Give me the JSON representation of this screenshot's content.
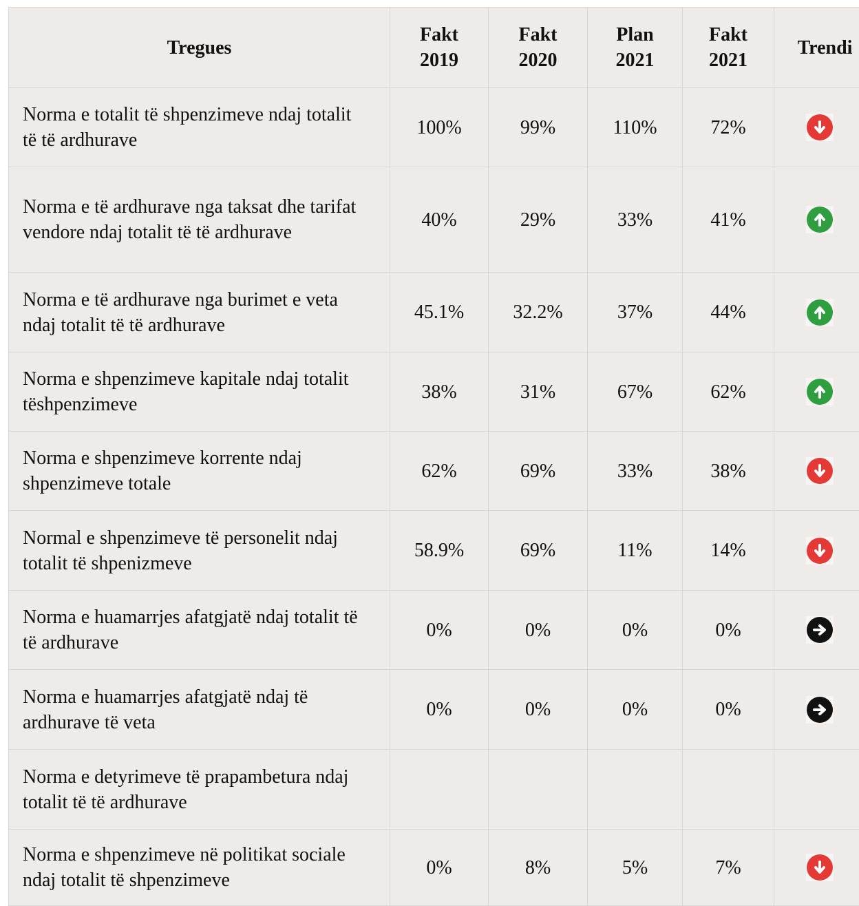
{
  "table": {
    "header": [
      "Tregues",
      "Fakt 2019",
      "Fakt 2020",
      "Plan 2021",
      "Fakt 2021",
      "Trendi"
    ],
    "rows": [
      {
        "label": "Norma e totalit të shpenzimeve ndaj totalit të të ardhurave",
        "values": [
          "100%",
          "99%",
          "110%",
          "72%"
        ],
        "trend": "down"
      },
      {
        "label": "Norma e të ardhurave nga taksat dhe tarifat vendore ndaj totalit të të ardhurave",
        "values": [
          "40%",
          "29%",
          "33%",
          "41%"
        ],
        "trend": "up"
      },
      {
        "label": "Norma e të ardhurave nga burimet e veta ndaj totalit të të ardhurave",
        "values": [
          "45.1%",
          "32.2%",
          "37%",
          "44%"
        ],
        "trend": "up"
      },
      {
        "label": "Norma e shpenzimeve kapitale ndaj totalit tëshpenzimeve",
        "values": [
          "38%",
          "31%",
          "67%",
          "62%"
        ],
        "trend": "up"
      },
      {
        "label": "Norma e shpenzimeve korrente ndaj shpenzimeve totale",
        "values": [
          "62%",
          "69%",
          "33%",
          "38%"
        ],
        "trend": "down"
      },
      {
        "label": "Normal e shpenzimeve të personelit ndaj totalit të shpenizmeve",
        "values": [
          "58.9%",
          "69%",
          "11%",
          "14%"
        ],
        "trend": "down"
      },
      {
        "label": "Norma e huamarrjes afatgjatë ndaj totalit të të ardhurave",
        "values": [
          "0%",
          "0%",
          "0%",
          "0%"
        ],
        "trend": "flat"
      },
      {
        "label": "Norma e huamarrjes afatgjatë ndaj të ardhurave të veta",
        "values": [
          "0%",
          "0%",
          "0%",
          "0%"
        ],
        "trend": "flat"
      },
      {
        "label": "Norma e detyrimeve të prapambetura ndaj totalit të të ardhurave",
        "values": [
          null,
          null,
          null,
          null
        ],
        "trend": null
      },
      {
        "label": "Norma e shpenzimeve në politikat sociale ndaj totalit të shpenzimeve",
        "values": [
          "0%",
          "8%",
          "5%",
          "7%"
        ],
        "trend": "down"
      }
    ]
  }
}
